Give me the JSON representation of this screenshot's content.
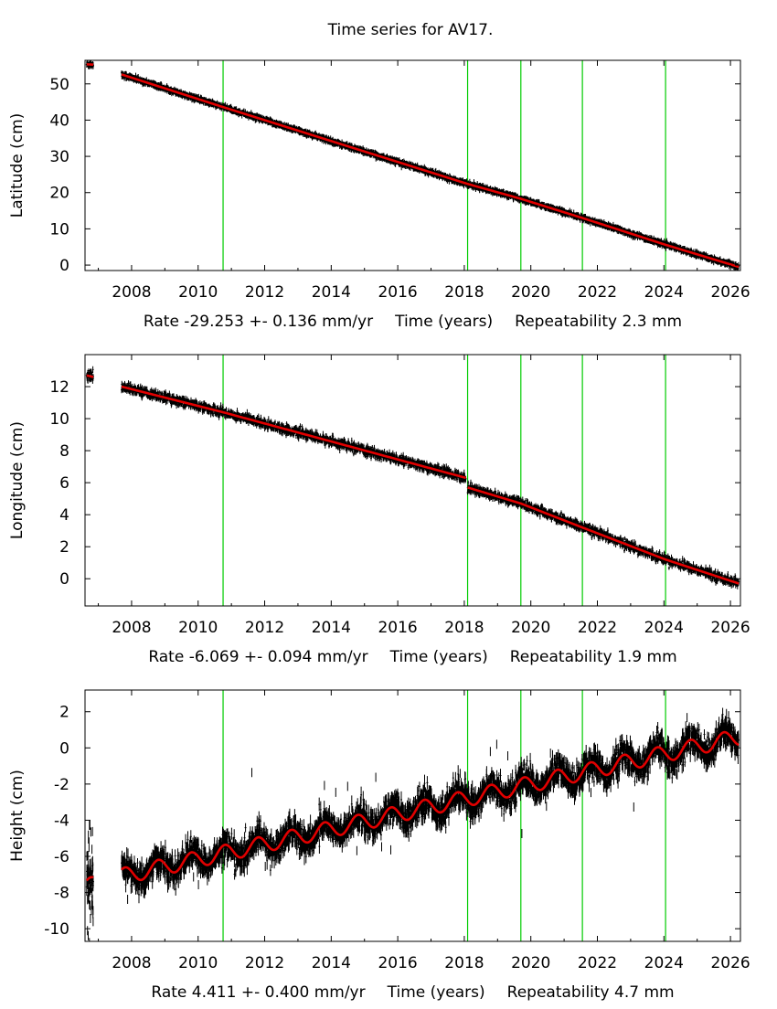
{
  "figure_title": "Time series for AV17.",
  "colors": {
    "data": "#000000",
    "model": "#e00000",
    "event_lines": "#00cc00",
    "axes": "#000000"
  },
  "chart_data": [
    {
      "type": "scatter",
      "title": "Time series for AV17.",
      "ylabel": "Latitude (cm)",
      "xlabel": "Time (years)",
      "rate_label": "Rate -29.253 +- 0.136 mm/yr",
      "repeat_label": "Repeatability 2.3 mm",
      "xlim": [
        2006.6,
        2026.3
      ],
      "ylim": [
        -1.5,
        56.5
      ],
      "xticks": [
        2008,
        2010,
        2012,
        2014,
        2016,
        2018,
        2020,
        2022,
        2024,
        2026
      ],
      "yticks": [
        0,
        10,
        20,
        30,
        40,
        50
      ],
      "event_lines": [
        2010.75,
        2018.1,
        2019.7,
        2021.55,
        2024.05
      ],
      "segments": [
        {
          "x": [
            2006.65,
            2006.85
          ],
          "y": [
            55.4,
            55.3
          ]
        },
        {
          "x": [
            2007.7,
            2010.75,
            2018.1,
            2019.7,
            2021.55,
            2024.05,
            2026.25
          ],
          "y": [
            52.6,
            43.6,
            22.4,
            18.3,
            13.0,
            5.6,
            -0.5
          ]
        }
      ],
      "scatter_spread": 0.5,
      "seasonal_amplitude": 0.0
    },
    {
      "type": "scatter",
      "ylabel": "Longitude (cm)",
      "xlabel": "Time (years)",
      "rate_label": "Rate -6.069 +- 0.094 mm/yr",
      "repeat_label": "Repeatability 1.9 mm",
      "xlim": [
        2006.6,
        2026.3
      ],
      "ylim": [
        -1.7,
        14.0
      ],
      "xticks": [
        2008,
        2010,
        2012,
        2014,
        2016,
        2018,
        2020,
        2022,
        2024,
        2026
      ],
      "yticks": [
        0,
        2,
        4,
        6,
        8,
        10,
        12
      ],
      "event_lines": [
        2010.75,
        2018.1,
        2019.7,
        2021.55,
        2024.05
      ],
      "segments": [
        {
          "x": [
            2006.65,
            2006.85
          ],
          "y": [
            12.7,
            12.6
          ]
        },
        {
          "x": [
            2007.7,
            2010.75,
            2018.05
          ],
          "y": [
            12.0,
            10.4,
            6.3
          ]
        },
        {
          "x": [
            2018.1,
            2019.7,
            2021.55,
            2024.05,
            2026.25
          ],
          "y": [
            5.7,
            4.7,
            3.2,
            1.2,
            -0.3
          ]
        }
      ],
      "scatter_spread": 0.25,
      "seasonal_amplitude": 0.0
    },
    {
      "type": "scatter",
      "ylabel": "Height (cm)",
      "xlabel": "Time (years)",
      "rate_label": "Rate 4.411 +- 0.400 mm/yr",
      "repeat_label": "Repeatability 4.7 mm",
      "xlim": [
        2006.6,
        2026.3
      ],
      "ylim": [
        -10.7,
        3.2
      ],
      "xticks": [
        2008,
        2010,
        2012,
        2014,
        2016,
        2018,
        2020,
        2022,
        2024,
        2026
      ],
      "yticks": [
        -10,
        -8,
        -6,
        -4,
        -2,
        0,
        2
      ],
      "event_lines": [
        2010.75,
        2018.1,
        2019.7,
        2021.55,
        2024.05
      ],
      "segments": [
        {
          "x": [
            2006.65,
            2006.85
          ],
          "y": [
            -7.6,
            -7.6
          ]
        },
        {
          "x": [
            2007.7,
            2026.25
          ],
          "y": [
            -7.1,
            0.6
          ]
        }
      ],
      "scatter_spread": 0.7,
      "seasonal_amplitude": 0.45
    }
  ]
}
